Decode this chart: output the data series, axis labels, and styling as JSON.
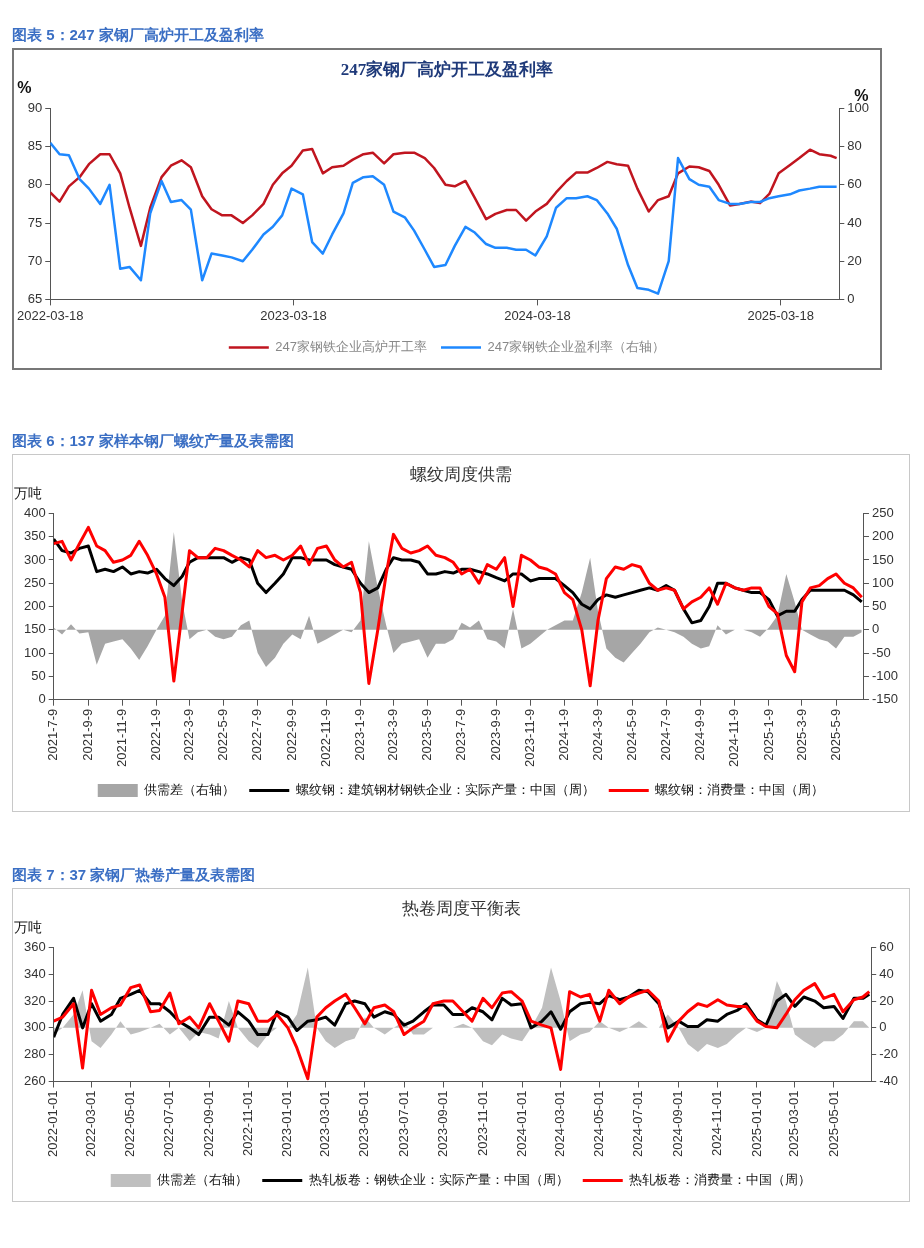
{
  "chart_data": [
    {
      "type": "line",
      "title": "247家钢厂高炉开工及盈利率",
      "annotations": [
        "图表 5：247 家钢厂高炉开工及盈利率"
      ],
      "ylabel": "%",
      "y2label": "%",
      "legend": "bottom",
      "x": [
        "2022-03-18",
        "2022-04-01",
        "2022-04-15",
        "2022-05-01",
        "2022-05-15",
        "2022-06-01",
        "2022-06-15",
        "2022-07-01",
        "2022-07-15",
        "2022-08-01",
        "2022-08-15",
        "2022-09-01",
        "2022-09-15",
        "2022-10-01",
        "2022-10-15",
        "2022-11-01",
        "2022-11-15",
        "2022-12-01",
        "2022-12-15",
        "2023-01-01",
        "2023-01-15",
        "2023-02-01",
        "2023-02-15",
        "2023-03-01",
        "2023-03-15",
        "2023-04-01",
        "2023-04-15",
        "2023-05-01",
        "2023-05-15",
        "2023-06-01",
        "2023-06-15",
        "2023-07-01",
        "2023-07-15",
        "2023-08-01",
        "2023-08-15",
        "2023-09-01",
        "2023-09-15",
        "2023-10-01",
        "2023-10-15",
        "2023-11-01",
        "2023-11-15",
        "2023-12-01",
        "2023-12-15",
        "2024-01-01",
        "2024-01-15",
        "2024-02-01",
        "2024-02-15",
        "2024-03-01",
        "2024-03-15",
        "2024-04-01",
        "2024-04-15",
        "2024-05-01",
        "2024-05-15",
        "2024-06-01",
        "2024-06-15",
        "2024-07-01",
        "2024-07-15",
        "2024-08-01",
        "2024-08-15",
        "2024-09-01",
        "2024-09-15",
        "2024-10-01",
        "2024-10-15",
        "2024-11-01",
        "2024-11-15",
        "2024-12-01",
        "2024-12-15",
        "2025-01-01",
        "2025-01-15",
        "2025-02-01",
        "2025-02-15",
        "2025-03-01",
        "2025-03-15",
        "2025-04-01",
        "2025-04-15",
        "2025-05-01",
        "2025-05-15",
        "2025-06-01",
        "2025-06-10"
      ],
      "xlim": [
        "2022-03-18",
        "2025-06-14"
      ],
      "xticks": [
        "2022-03-18",
        "2023-03-18",
        "2024-03-18",
        "2025-03-18"
      ],
      "ylim": [
        65,
        90
      ],
      "yticks": [
        65,
        70,
        75,
        80,
        85,
        90
      ],
      "y2lim": [
        0,
        100
      ],
      "y2ticks": [
        0,
        20,
        40,
        60,
        80,
        100
      ],
      "series": [
        {
          "name": "247家钢铁企业高炉开工率",
          "color": "#c0151f",
          "values": [
            79,
            77.8,
            79.8,
            81,
            82.7,
            84,
            84,
            81.5,
            77,
            72,
            77,
            81,
            82.5,
            83.2,
            82.3,
            78.5,
            76.8,
            76,
            76,
            75,
            76,
            77.5,
            80,
            81.5,
            82.5,
            84.5,
            84.7,
            81.5,
            82.3,
            82.5,
            83.3,
            84,
            84.2,
            82.8,
            84,
            84.2,
            84.2,
            83.5,
            82.2,
            80,
            79.8,
            80.5,
            78.3,
            75.5,
            76.2,
            76.7,
            76.7,
            75.3,
            76.5,
            77.5,
            79,
            80.5,
            81.6,
            81.6,
            82.2,
            83,
            82.7,
            82.5,
            79.5,
            76.5,
            78,
            78.5,
            81.5,
            82.4,
            82.3,
            81.8,
            80,
            77.3,
            77.5,
            77.8,
            77.6,
            78.8,
            81.5,
            82.6,
            83.5,
            84.6,
            84,
            83.8,
            83.5
          ]
        },
        {
          "name": "247家钢铁企业盈利率（右轴）",
          "color": "#1e88ff",
          "axis": "y2",
          "values": [
            82,
            76,
            75.5,
            63,
            58,
            50,
            60,
            16,
            17,
            10,
            45,
            62,
            51,
            52,
            47,
            10,
            24,
            23,
            22,
            20,
            26,
            34,
            38,
            44,
            58,
            55,
            30,
            24,
            34,
            45,
            61,
            64,
            64.5,
            60,
            46,
            43,
            36,
            26,
            17,
            18,
            28,
            38,
            35,
            29,
            27,
            27,
            26,
            26,
            23,
            33,
            48,
            53,
            53,
            54,
            52,
            45,
            37,
            18,
            6,
            5,
            3,
            20,
            74,
            63,
            60,
            59,
            52,
            50,
            50,
            51,
            51,
            53,
            54,
            55,
            57,
            58,
            59,
            59,
            59
          ]
        }
      ]
    },
    {
      "type": "line",
      "title": "螺纹周度供需",
      "annotations": [
        "图表 6：137 家样本钢厂螺纹产量及表需图"
      ],
      "ylabel": "万吨",
      "legend": "bottom",
      "x": [
        "2021-07-09",
        "2021-07-24",
        "2021-08-09",
        "2021-08-24",
        "2021-09-09",
        "2021-09-24",
        "2021-10-09",
        "2021-10-24",
        "2021-11-09",
        "2021-11-24",
        "2021-12-09",
        "2021-12-24",
        "2022-01-09",
        "2022-01-24",
        "2022-02-09",
        "2022-02-24",
        "2022-03-09",
        "2022-03-24",
        "2022-04-09",
        "2022-04-24",
        "2022-05-09",
        "2022-05-24",
        "2022-06-09",
        "2022-06-24",
        "2022-07-09",
        "2022-07-24",
        "2022-08-09",
        "2022-08-24",
        "2022-09-09",
        "2022-09-24",
        "2022-10-09",
        "2022-10-24",
        "2022-11-09",
        "2022-11-24",
        "2022-12-09",
        "2022-12-24",
        "2023-01-09",
        "2023-01-24",
        "2023-02-09",
        "2023-02-24",
        "2023-03-09",
        "2023-03-24",
        "2023-04-09",
        "2023-04-24",
        "2023-05-09",
        "2023-05-24",
        "2023-06-09",
        "2023-06-24",
        "2023-07-09",
        "2023-07-24",
        "2023-08-09",
        "2023-08-24",
        "2023-09-09",
        "2023-09-24",
        "2023-10-09",
        "2023-10-24",
        "2023-11-09",
        "2023-11-24",
        "2023-12-09",
        "2023-12-24",
        "2024-01-09",
        "2024-01-24",
        "2024-02-09",
        "2024-02-24",
        "2024-03-09",
        "2024-03-24",
        "2024-04-09",
        "2024-04-24",
        "2024-05-09",
        "2024-05-24",
        "2024-06-09",
        "2024-06-24",
        "2024-07-09",
        "2024-07-24",
        "2024-08-09",
        "2024-08-24",
        "2024-09-09",
        "2024-09-24",
        "2024-10-09",
        "2024-10-24",
        "2024-11-09",
        "2024-11-24",
        "2024-12-09",
        "2024-12-24",
        "2025-01-09",
        "2025-01-24",
        "2025-02-09",
        "2025-02-24",
        "2025-03-09",
        "2025-03-24",
        "2025-04-09",
        "2025-04-24",
        "2025-05-09",
        "2025-05-24",
        "2025-06-09",
        "2025-06-24"
      ],
      "xlim": [
        "2021-07-09",
        "2025-06-28"
      ],
      "xticks": [
        {
          "value": "2021-07-09",
          "label": "2021-7-9"
        },
        {
          "value": "2021-09-09",
          "label": "2021-9-9"
        },
        {
          "value": "2021-11-09",
          "label": "2021-11-9"
        },
        {
          "value": "2022-01-09",
          "label": "2022-1-9"
        },
        {
          "value": "2022-03-09",
          "label": "2022-3-9"
        },
        {
          "value": "2022-05-09",
          "label": "2022-5-9"
        },
        {
          "value": "2022-07-09",
          "label": "2022-7-9"
        },
        {
          "value": "2022-09-09",
          "label": "2022-9-9"
        },
        {
          "value": "2022-11-09",
          "label": "2022-11-9"
        },
        {
          "value": "2023-01-09",
          "label": "2023-1-9"
        },
        {
          "value": "2023-03-09",
          "label": "2023-3-9"
        },
        {
          "value": "2023-05-09",
          "label": "2023-5-9"
        },
        {
          "value": "2023-07-09",
          "label": "2023-7-9"
        },
        {
          "value": "2023-09-09",
          "label": "2023-9-9"
        },
        {
          "value": "2023-11-09",
          "label": "2023-11-9"
        },
        {
          "value": "2024-01-09",
          "label": "2024-1-9"
        },
        {
          "value": "2024-03-09",
          "label": "2024-3-9"
        },
        {
          "value": "2024-05-09",
          "label": "2024-5-9"
        },
        {
          "value": "2024-07-09",
          "label": "2024-7-9"
        },
        {
          "value": "2024-09-09",
          "label": "2024-9-9"
        },
        {
          "value": "2024-11-09",
          "label": "2024-11-9"
        },
        {
          "value": "2025-01-09",
          "label": "2025-1-9"
        },
        {
          "value": "2025-03-09",
          "label": "2025-3-9"
        },
        {
          "value": "2025-05-09",
          "label": "2025-5-9"
        }
      ],
      "ylim": [
        0,
        400
      ],
      "yticks": [
        0,
        50,
        100,
        150,
        200,
        250,
        300,
        350,
        400
      ],
      "y2lim": [
        -150,
        250
      ],
      "y2ticks": [
        -150,
        -100,
        -50,
        0,
        50,
        100,
        150,
        200,
        250
      ],
      "series": [
        {
          "name": "供需差（右轴）",
          "type": "area",
          "axis": "y2",
          "color": "#a6a6a6",
          "values": [
            5,
            -10,
            12,
            -8,
            -5,
            -75,
            -30,
            -25,
            -20,
            -40,
            -65,
            -35,
            0,
            30,
            210,
            60,
            -20,
            -5,
            0,
            -15,
            -20,
            -15,
            10,
            20,
            -50,
            -80,
            -60,
            -30,
            -10,
            -20,
            30,
            -30,
            -20,
            -10,
            0,
            -5,
            20,
            190,
            90,
            10,
            -50,
            -30,
            -25,
            -20,
            -60,
            -30,
            -30,
            -20,
            15,
            5,
            20,
            -20,
            -25,
            -40,
            45,
            -40,
            -30,
            -15,
            0,
            10,
            20,
            20,
            80,
            155,
            40,
            -40,
            -60,
            -70,
            -50,
            -30,
            -5,
            5,
            0,
            -5,
            -15,
            -30,
            -40,
            -35,
            10,
            -10,
            0,
            0,
            -5,
            -15,
            5,
            30,
            120,
            60,
            0,
            -10,
            -20,
            -25,
            -40,
            -15,
            -15,
            -5
          ]
        },
        {
          "name": "螺纹钢：建筑钢材钢铁企业：实际产量：中国（周）",
          "color": "#000000",
          "values": [
            345,
            320,
            315,
            325,
            330,
            275,
            280,
            275,
            285,
            270,
            275,
            272,
            280,
            260,
            245,
            265,
            295,
            305,
            305,
            305,
            305,
            295,
            305,
            300,
            250,
            230,
            250,
            270,
            305,
            305,
            300,
            300,
            300,
            290,
            285,
            280,
            250,
            230,
            240,
            280,
            305,
            300,
            300,
            295,
            270,
            270,
            275,
            272,
            280,
            280,
            275,
            270,
            262,
            255,
            270,
            270,
            255,
            260,
            260,
            260,
            245,
            230,
            205,
            195,
            215,
            225,
            220,
            225,
            230,
            235,
            240,
            235,
            245,
            235,
            195,
            165,
            170,
            200,
            250,
            250,
            240,
            235,
            230,
            230,
            215,
            180,
            190,
            190,
            215,
            235,
            235,
            235,
            235,
            235,
            225,
            210
          ]
        },
        {
          "name": "螺纹钢：消费量：中国（周）",
          "color": "#ff0000",
          "values": [
            335,
            340,
            300,
            335,
            370,
            330,
            320,
            295,
            300,
            310,
            340,
            310,
            270,
            220,
            40,
            190,
            320,
            305,
            305,
            325,
            320,
            310,
            300,
            285,
            320,
            305,
            310,
            300,
            310,
            330,
            290,
            325,
            330,
            300,
            285,
            295,
            230,
            35,
            150,
            270,
            355,
            325,
            315,
            320,
            330,
            310,
            305,
            295,
            270,
            280,
            250,
            290,
            280,
            305,
            200,
            310,
            300,
            285,
            280,
            270,
            230,
            215,
            150,
            30,
            170,
            260,
            285,
            280,
            290,
            285,
            250,
            235,
            240,
            235,
            195,
            210,
            220,
            240,
            205,
            250,
            240,
            235,
            240,
            240,
            200,
            185,
            95,
            60,
            210,
            240,
            245,
            260,
            270,
            250,
            240,
            220
          ]
        }
      ]
    },
    {
      "type": "line",
      "title": "热卷周度平衡表",
      "annotations": [
        "图表 7：37 家钢厂热卷产量及表需图"
      ],
      "ylabel": "万吨",
      "legend": "bottom",
      "x": [
        "2022-01-01",
        "2022-01-15",
        "2022-02-01",
        "2022-02-15",
        "2022-03-01",
        "2022-03-15",
        "2022-04-01",
        "2022-04-15",
        "2022-05-01",
        "2022-05-15",
        "2022-06-01",
        "2022-06-15",
        "2022-07-01",
        "2022-07-15",
        "2022-08-01",
        "2022-08-15",
        "2022-09-01",
        "2022-09-15",
        "2022-10-01",
        "2022-10-15",
        "2022-11-01",
        "2022-11-15",
        "2022-12-01",
        "2022-12-15",
        "2023-01-01",
        "2023-01-15",
        "2023-02-01",
        "2023-02-15",
        "2023-03-01",
        "2023-03-15",
        "2023-04-01",
        "2023-04-15",
        "2023-05-01",
        "2023-05-15",
        "2023-06-01",
        "2023-06-15",
        "2023-07-01",
        "2023-07-15",
        "2023-08-01",
        "2023-08-15",
        "2023-09-01",
        "2023-09-15",
        "2023-10-01",
        "2023-10-15",
        "2023-11-01",
        "2023-11-15",
        "2023-12-01",
        "2023-12-15",
        "2024-01-01",
        "2024-01-15",
        "2024-02-01",
        "2024-02-15",
        "2024-03-01",
        "2024-03-15",
        "2024-04-01",
        "2024-04-15",
        "2024-05-01",
        "2024-05-15",
        "2024-06-01",
        "2024-06-15",
        "2024-07-01",
        "2024-07-15",
        "2024-08-01",
        "2024-08-15",
        "2024-09-01",
        "2024-09-15",
        "2024-10-01",
        "2024-10-15",
        "2024-11-01",
        "2024-11-15",
        "2024-12-01",
        "2024-12-15",
        "2025-01-01",
        "2025-01-15",
        "2025-02-01",
        "2025-02-15",
        "2025-03-01",
        "2025-03-15",
        "2025-04-01",
        "2025-04-15",
        "2025-05-01",
        "2025-05-15",
        "2025-06-01",
        "2025-06-15",
        "2025-06-25"
      ],
      "xlim": [
        "2022-01-01",
        "2025-06-28"
      ],
      "xticks": [
        "2022-01-01",
        "2022-03-01",
        "2022-05-01",
        "2022-07-01",
        "2022-09-01",
        "2022-11-01",
        "2023-01-01",
        "2023-03-01",
        "2023-05-01",
        "2023-07-01",
        "2023-09-01",
        "2023-11-01",
        "2024-01-01",
        "2024-03-01",
        "2024-05-01",
        "2024-07-01",
        "2024-09-01",
        "2024-11-01",
        "2025-01-01",
        "2025-03-01",
        "2025-05-01"
      ],
      "ylim": [
        260,
        360
      ],
      "yticks": [
        260,
        280,
        300,
        320,
        340,
        360
      ],
      "y2lim": [
        -40,
        60
      ],
      "y2ticks": [
        -40,
        -20,
        0,
        20,
        40,
        60
      ],
      "series": [
        {
          "name": "供需差（右轴）",
          "type": "area",
          "axis": "y2",
          "color": "#bfbfbf",
          "values": [
            -5,
            0,
            10,
            28,
            -10,
            -15,
            -5,
            5,
            -5,
            -3,
            0,
            3,
            -5,
            0,
            -10,
            -3,
            -5,
            -8,
            20,
            0,
            -10,
            -15,
            -5,
            0,
            0,
            10,
            45,
            0,
            -10,
            -15,
            -10,
            -8,
            8,
            0,
            -5,
            0,
            5,
            -5,
            -5,
            0,
            0,
            0,
            3,
            0,
            -10,
            -13,
            -5,
            -8,
            -10,
            0,
            15,
            45,
            20,
            -10,
            -5,
            -3,
            5,
            0,
            -3,
            0,
            5,
            0,
            0,
            10,
            0,
            -12,
            -18,
            -12,
            -15,
            -12,
            -5,
            0,
            -3,
            0,
            35,
            20,
            -5,
            -10,
            -15,
            -10,
            -10,
            -5,
            5,
            5,
            0
          ]
        },
        {
          "name": "热轧板卷：钢铁企业：实际产量：中国（周）",
          "color": "#000000",
          "values": [
            293,
            310,
            322,
            300,
            318,
            305,
            310,
            322,
            325,
            328,
            318,
            318,
            312,
            305,
            300,
            295,
            308,
            308,
            302,
            312,
            305,
            295,
            295,
            312,
            308,
            298,
            305,
            306,
            308,
            302,
            318,
            320,
            318,
            308,
            312,
            310,
            302,
            305,
            312,
            317,
            317,
            310,
            310,
            315,
            312,
            306,
            322,
            317,
            318,
            300,
            305,
            312,
            299,
            312,
            318,
            319,
            318,
            324,
            321,
            323,
            328,
            327,
            318,
            300,
            305,
            301,
            301,
            306,
            305,
            310,
            313,
            318,
            306,
            302,
            320,
            325,
            316,
            323,
            320,
            315,
            316,
            307,
            322,
            322,
            325
          ]
        },
        {
          "name": "热轧板卷：消费量：中国（周）",
          "color": "#ff0000",
          "values": [
            305,
            308,
            318,
            270,
            328,
            310,
            315,
            317,
            330,
            332,
            312,
            313,
            326,
            303,
            308,
            300,
            318,
            305,
            290,
            320,
            318,
            305,
            305,
            310,
            300,
            285,
            262,
            308,
            315,
            320,
            325,
            315,
            303,
            315,
            317,
            312,
            295,
            300,
            305,
            318,
            320,
            320,
            312,
            305,
            322,
            315,
            326,
            327,
            320,
            305,
            302,
            300,
            269,
            327,
            323,
            325,
            305,
            328,
            318,
            323,
            326,
            328,
            320,
            290,
            305,
            312,
            318,
            316,
            321,
            317,
            316,
            316,
            305,
            301,
            300,
            310,
            321,
            328,
            333,
            322,
            325,
            312,
            321,
            323,
            327
          ]
        }
      ]
    }
  ]
}
